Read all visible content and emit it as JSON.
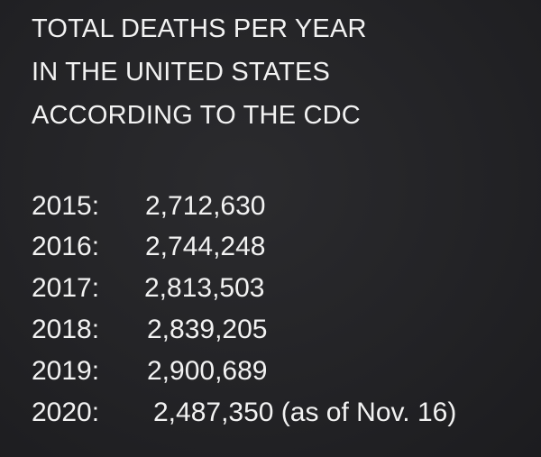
{
  "title_lines": [
    "TOTAL DEATHS PER YEAR",
    "IN THE UNITED STATES",
    "ACCORDING TO THE CDC"
  ],
  "rows": [
    {
      "year": "2015:",
      "value": "2,712,630"
    },
    {
      "year": "2016:",
      "value": "2,744,248"
    },
    {
      "year": "2017:",
      "value": "2,813,503"
    },
    {
      "year": "2018:",
      "value": "2,839,205"
    },
    {
      "year": "2019:",
      "value": "2,900,689"
    },
    {
      "year": "2020:",
      "value": "2,487,350 (as of Nov. 16)"
    }
  ],
  "colors": {
    "background": "#232326",
    "text": "#f2f2f2"
  }
}
